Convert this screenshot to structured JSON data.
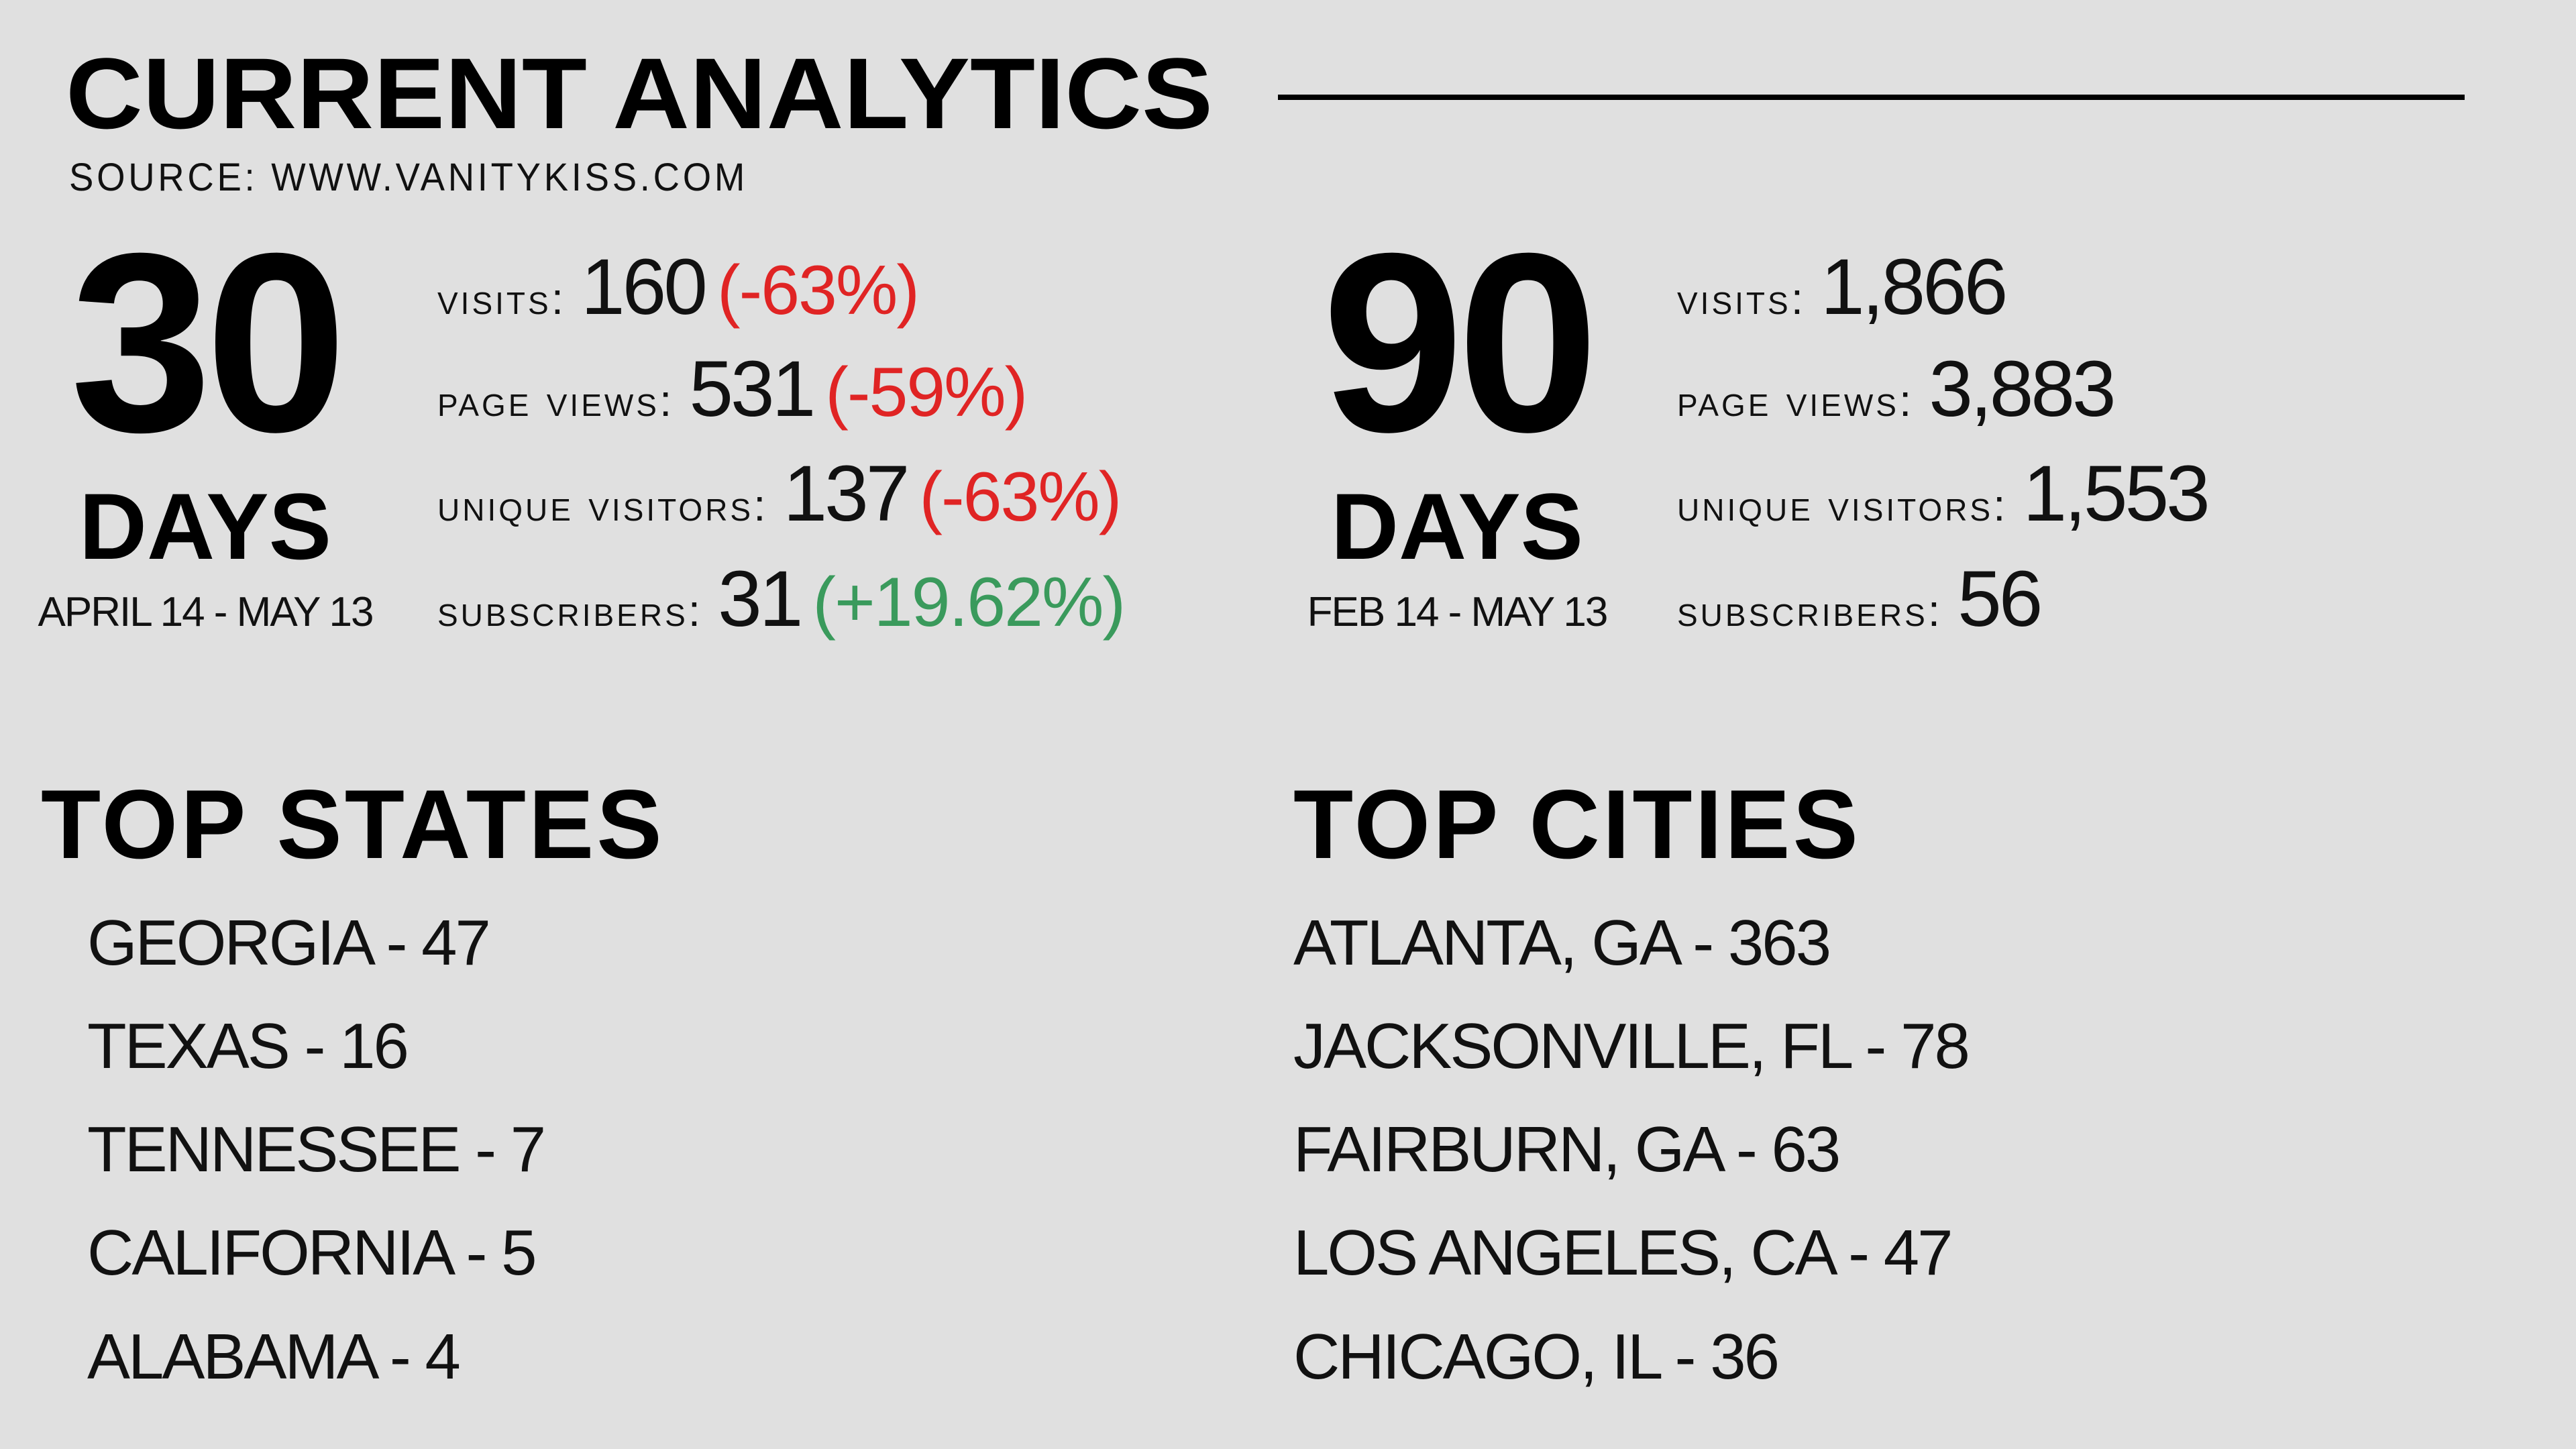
{
  "header": {
    "title": "CURRENT ANALYTICS",
    "source": "SOURCE: WWW.VANITYKISS.COM"
  },
  "periods": [
    {
      "number": "30",
      "unit": "DAYS",
      "range": "APRIL 14 - MAY 13",
      "stats": [
        {
          "label": "visits:",
          "value": "160",
          "change": "(-63%)",
          "change_color": "#e02424"
        },
        {
          "label": "page views:",
          "value": "531",
          "change": "(-59%)",
          "change_color": "#e02424"
        },
        {
          "label": "unique visitors:",
          "value": "137",
          "change": "(-63%)",
          "change_color": "#e02424"
        },
        {
          "label": "subscribers:",
          "value": "31",
          "change": "(+19.62%)",
          "change_color": "#3a9a5c"
        }
      ]
    },
    {
      "number": "90",
      "unit": "DAYS",
      "range": "FEB 14 - MAY 13",
      "stats": [
        {
          "label": "visits:",
          "value": "1,866"
        },
        {
          "label": "page views:",
          "value": "3,883"
        },
        {
          "label": "unique visitors:",
          "value": "1,553"
        },
        {
          "label": "subscribers:",
          "value": "56"
        }
      ]
    }
  ],
  "lists": [
    {
      "title": "TOP STATES",
      "items": [
        "GEORGIA - 47",
        "TEXAS - 16",
        "TENNESSEE - 7",
        "CALIFORNIA - 5",
        "ALABAMA - 4"
      ]
    },
    {
      "title": "TOP CITIES",
      "items": [
        "ATLANTA, GA - 363",
        "JACKSONVILLE, FL - 78",
        "FAIRBURN, GA - 63",
        "LOS ANGELES, CA - 47",
        "CHICAGO, IL - 36"
      ]
    }
  ]
}
